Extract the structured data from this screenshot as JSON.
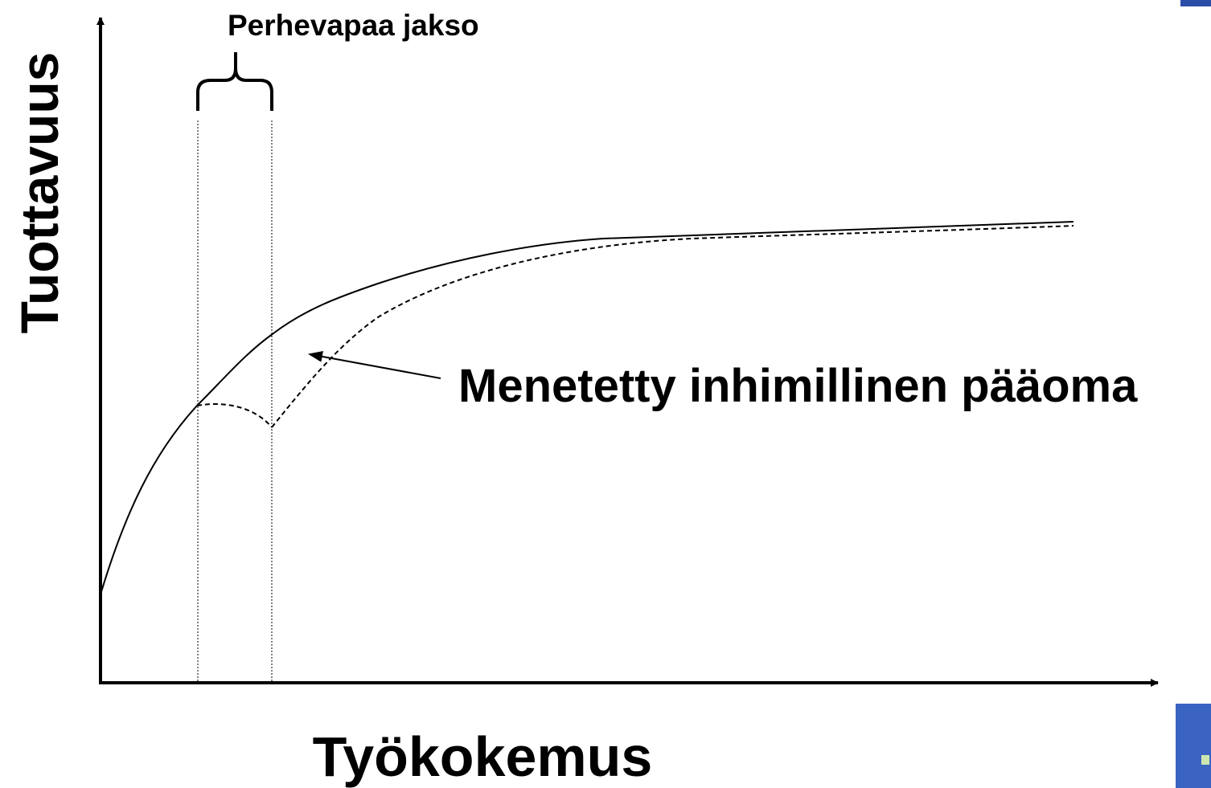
{
  "y_axis_label": "Tuottavuus",
  "x_axis_label": "Työkokemus",
  "bracket_label": "Perhevapaa jakso",
  "arrow_label": "Menetetty inhimillinen pääoma"
}
